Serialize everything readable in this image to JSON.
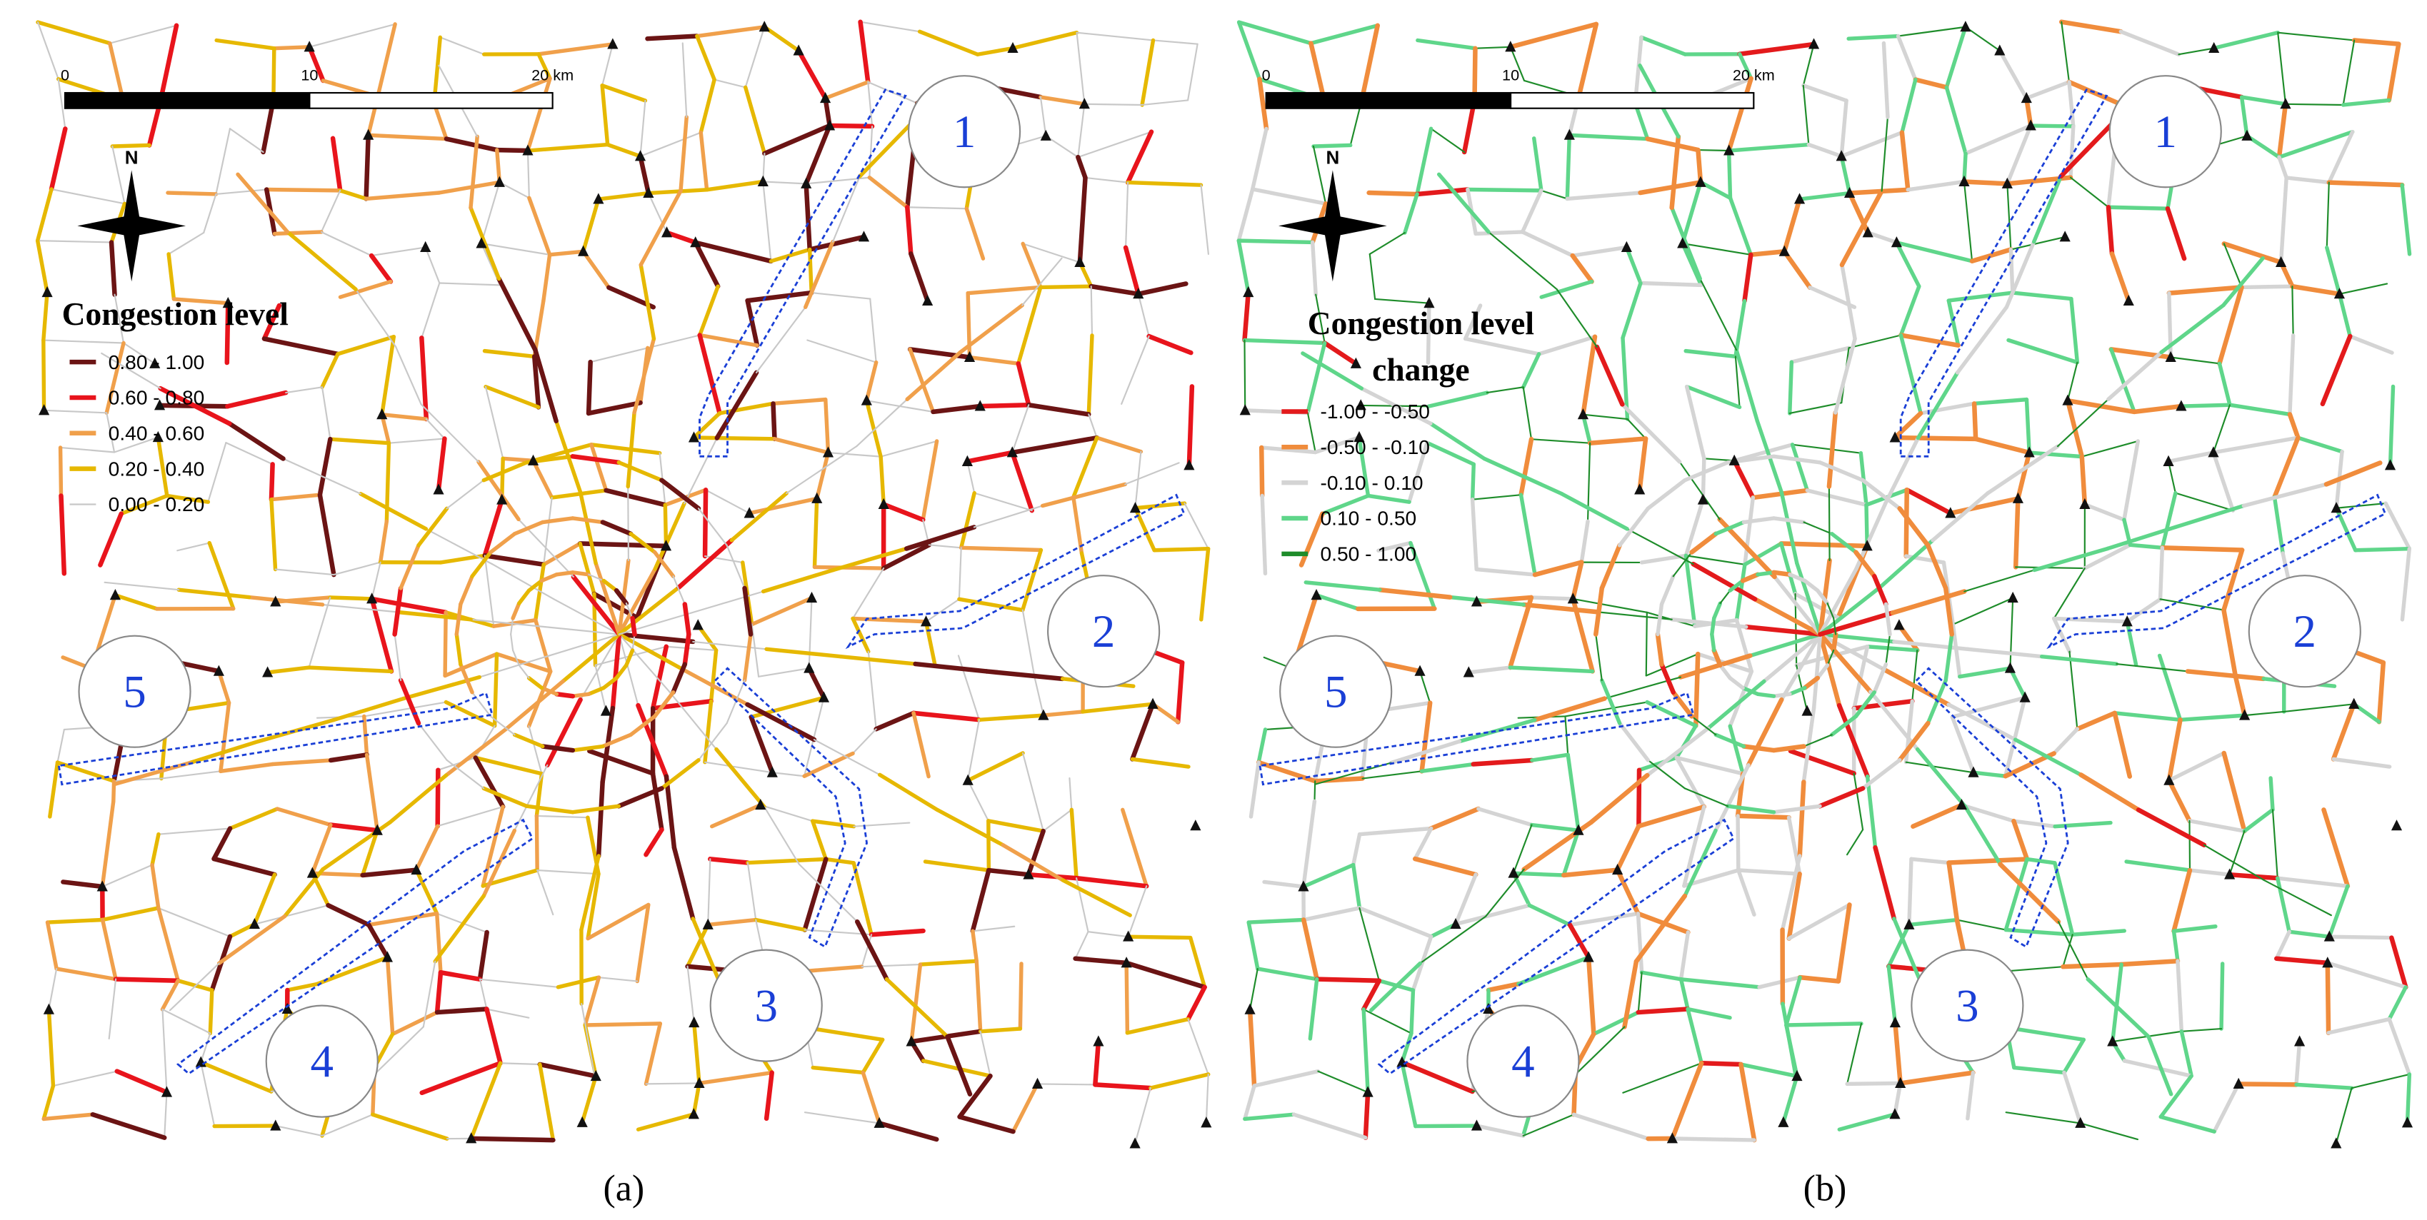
{
  "panels": [
    {
      "caption": "(a)",
      "scale_labels": [
        "0",
        "10",
        "20 km"
      ],
      "north": "N",
      "legend_title": [
        "Congestion level"
      ],
      "legend": [
        {
          "label": "0.80 - 1.00",
          "color": "#6b1414"
        },
        {
          "label": "0.60 - 0.80",
          "color": "#e8141c"
        },
        {
          "label": "0.40 - 0.60",
          "color": "#f0a04b"
        },
        {
          "label": "0.20 - 0.40",
          "color": "#e6b800"
        },
        {
          "label": "0.00 - 0.20",
          "color": "#c8c8c8"
        }
      ],
      "zones": [
        "1",
        "2",
        "3",
        "4",
        "5"
      ]
    },
    {
      "caption": "(b)",
      "scale_labels": [
        "0",
        "10",
        "20 km"
      ],
      "north": "N",
      "legend_title": [
        "Congestion level",
        "change"
      ],
      "legend": [
        {
          "label": "-1.00 - -0.50",
          "color": "#e31a1c"
        },
        {
          "label": "-0.50 - -0.10",
          "color": "#f08c3c"
        },
        {
          "label": "-0.10 - 0.10",
          "color": "#d4d4d4"
        },
        {
          "label": "0.10 - 0.50",
          "color": "#5fd68a"
        },
        {
          "label": "0.50 - 1.00",
          "color": "#1e8c2a"
        }
      ],
      "zones": [
        "1",
        "2",
        "3",
        "4",
        "5"
      ]
    }
  ]
}
